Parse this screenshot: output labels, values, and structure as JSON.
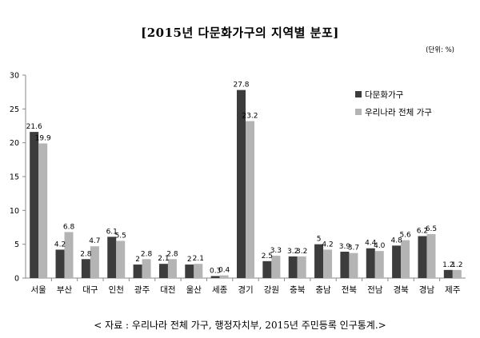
{
  "chart_data": {
    "type": "bar",
    "title": "[2015년 다문화가구의 지역별 분포]",
    "unit_note": "(단위: %)",
    "source_note": "< 자료 : 우리나라 전체 가구, 행정자치부, 2015년 주민등록 인구통계.>",
    "categories": [
      "서울",
      "부산",
      "대구",
      "인천",
      "광주",
      "대전",
      "울산",
      "세종",
      "경기",
      "강원",
      "충북",
      "충남",
      "전북",
      "전남",
      "경북",
      "경남",
      "제주"
    ],
    "ylim": [
      0,
      30
    ],
    "yticks": [
      0,
      5,
      10,
      15,
      20,
      25,
      30
    ],
    "grid": false,
    "legend_position": "right",
    "series": [
      {
        "name": "다문화가구",
        "color": "#3c3c3c",
        "values": [
          21.6,
          4.2,
          2.8,
          6.1,
          2,
          2.1,
          2,
          0.3,
          27.8,
          2.5,
          3.2,
          5,
          3.9,
          4.4,
          4.8,
          6.2,
          1.2
        ],
        "labels": [
          "21.6",
          "4.2",
          "2.8",
          "6.1",
          "2",
          "2.1",
          "2",
          "0.3",
          "27.8",
          "2.5",
          "3.2",
          "5",
          "3.9",
          "4.4",
          "4.8",
          "6.2",
          "1.2"
        ]
      },
      {
        "name": "우리나라 전체 가구",
        "color": "#b4b4b4",
        "values": [
          19.9,
          6.8,
          4.7,
          5.5,
          2.8,
          2.8,
          2.1,
          0.4,
          23.2,
          3.3,
          3.2,
          4.2,
          3.7,
          4.0,
          5.6,
          6.5,
          1.2
        ],
        "labels": [
          "19.9",
          "6.8",
          "4.7",
          "5.5",
          "2.8",
          "2.8",
          "2.1",
          "0.4",
          "23.2",
          "3.3",
          "3.2",
          "4.2",
          "3.7",
          "4.0",
          "5.6",
          "6.5",
          "1.2"
        ]
      }
    ]
  }
}
